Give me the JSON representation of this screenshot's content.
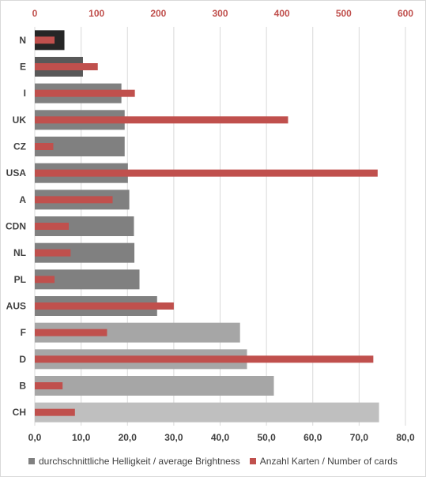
{
  "chart_data": {
    "type": "bar",
    "orientation": "horizontal",
    "categories": [
      "N",
      "E",
      "I",
      "UK",
      "CZ",
      "USA",
      "A",
      "CDN",
      "NL",
      "PL",
      "AUS",
      "F",
      "D",
      "B",
      "CH"
    ],
    "series": [
      {
        "name": "durchschnittliche Helligkeit / average Brightness",
        "axis": "bottom",
        "values": [
          6.4,
          10.4,
          18.7,
          19.4,
          19.4,
          20.1,
          20.4,
          21.4,
          21.5,
          22.6,
          26.4,
          44.3,
          45.8,
          51.6,
          74.3
        ],
        "colors": [
          "#262626",
          "#595959",
          "#808080",
          "#808080",
          "#808080",
          "#808080",
          "#808080",
          "#808080",
          "#808080",
          "#808080",
          "#808080",
          "#a6a6a6",
          "#a6a6a6",
          "#a6a6a6",
          "#bfbfbf"
        ]
      },
      {
        "name": "Anzahl Karten / Number of cards",
        "axis": "top",
        "color": "#c0504d",
        "values": [
          32,
          102,
          162,
          410,
          30,
          555,
          126,
          55,
          58,
          32,
          225,
          117,
          548,
          45,
          65
        ]
      }
    ],
    "x_bottom": {
      "range": [
        0,
        80
      ],
      "ticks": [
        "0,0",
        "10,0",
        "20,0",
        "30,0",
        "40,0",
        "50,0",
        "60,0",
        "70,0",
        "80,0"
      ]
    },
    "x_top": {
      "range": [
        0,
        600
      ],
      "ticks": [
        "0",
        "100",
        "200",
        "300",
        "400",
        "500",
        "600"
      ]
    },
    "grid": true,
    "legend_position": "bottom"
  }
}
